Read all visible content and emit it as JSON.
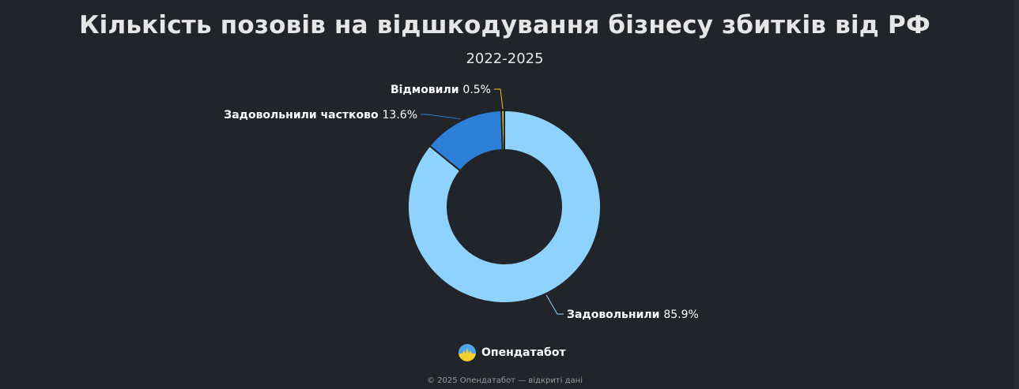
{
  "title": "Кількість позовів на відшкодування бізнесу збитків від РФ",
  "subtitle": "2022-2025",
  "brand": {
    "name": "Опендатабот",
    "icon": "opendatabot-logo-icon"
  },
  "footer": "© 2025 Опендатабот — відкриті дані",
  "colors": {
    "background": "#212428",
    "text": "#e6e6e6"
  },
  "chart_data": {
    "type": "pie",
    "donut": true,
    "title": "Кількість позовів на відшкодування бізнесу збитків від РФ",
    "subtitle": "2022-2025",
    "unit": "%",
    "slices": [
      {
        "name": "Задовольнили",
        "value": 85.9,
        "label": "85.9%",
        "color": "#8ed3ff"
      },
      {
        "name": "Задовольнили частково",
        "value": 13.6,
        "label": "13.6%",
        "color": "#2c80d8"
      },
      {
        "name": "Відмовили",
        "value": 0.5,
        "label": "0.5%",
        "color": "#f2c21a"
      }
    ]
  }
}
